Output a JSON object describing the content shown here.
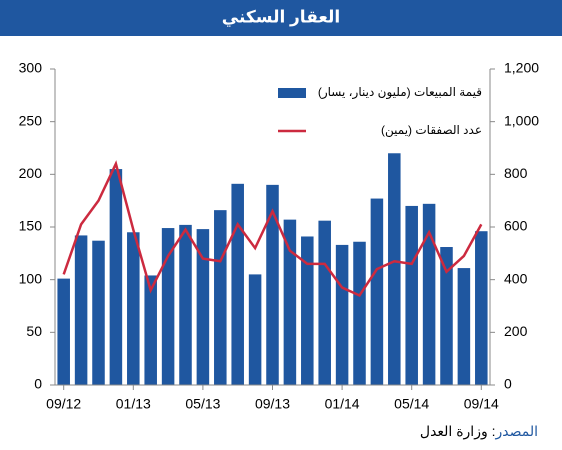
{
  "chart_data": {
    "type": "bar",
    "title": "العقار السكني",
    "categories": [
      "09/12",
      null,
      null,
      null,
      "01/13",
      null,
      null,
      null,
      "05/13",
      null,
      null,
      null,
      "09/13",
      null,
      null,
      null,
      "01/14",
      null,
      null,
      null,
      "05/14",
      null,
      null,
      null,
      "09/14"
    ],
    "series": [
      {
        "name": "قيمة المبيعات (مليون دينار، يسار)",
        "color": "#1f57a0",
        "type": "bar",
        "values": [
          101,
          142,
          137,
          205,
          145,
          104,
          149,
          152,
          148,
          166,
          191,
          105,
          190,
          157,
          141,
          156,
          133,
          136,
          177,
          220,
          170,
          172,
          131,
          111,
          146
        ]
      },
      {
        "name": "عدد الصفقات (يمين)",
        "color": "#cc2a3f",
        "type": "line",
        "axis": "y2",
        "values": [
          420,
          610,
          700,
          840,
          590,
          360,
          490,
          590,
          480,
          470,
          610,
          520,
          660,
          510,
          460,
          460,
          370,
          340,
          440,
          470,
          460,
          580,
          430,
          490,
          610
        ]
      }
    ],
    "ylim": [
      0,
      300
    ],
    "yticks": [
      0,
      50,
      100,
      150,
      200,
      250,
      300
    ],
    "y2lim": [
      0,
      1200
    ],
    "y2ticks": [
      0,
      200,
      400,
      600,
      800,
      {
        "value": 1000,
        "label": "1,000"
      },
      {
        "value": 1200,
        "label": "1,200"
      }
    ],
    "grid": false,
    "source": {
      "label": "المصدر",
      "text": ": وزارة العدل"
    }
  }
}
